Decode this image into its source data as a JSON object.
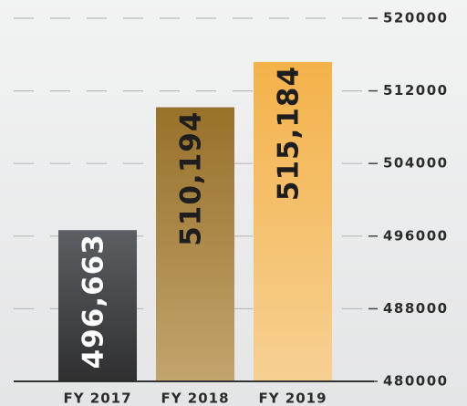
{
  "chart_data": {
    "type": "bar",
    "categories": [
      "FY 2017",
      "FY 2018",
      "FY 2019"
    ],
    "values": [
      496663,
      510194,
      515184
    ],
    "value_labels": [
      "496,663",
      "510,194",
      "515,184"
    ],
    "colors": [
      [
        "#5b5f63",
        "#2f2f30"
      ],
      [
        "#98712a",
        "#c2a46d"
      ],
      [
        "#f4b24a",
        "#f6d092"
      ]
    ],
    "label_colors": [
      "#ffffff",
      "#1e1e1e",
      "#1e1e1e"
    ],
    "ylim": [
      480000,
      520000
    ],
    "yticks": [
      480000,
      488000,
      496000,
      504000,
      512000,
      520000
    ],
    "y_axis_side": "right",
    "grid": true
  }
}
